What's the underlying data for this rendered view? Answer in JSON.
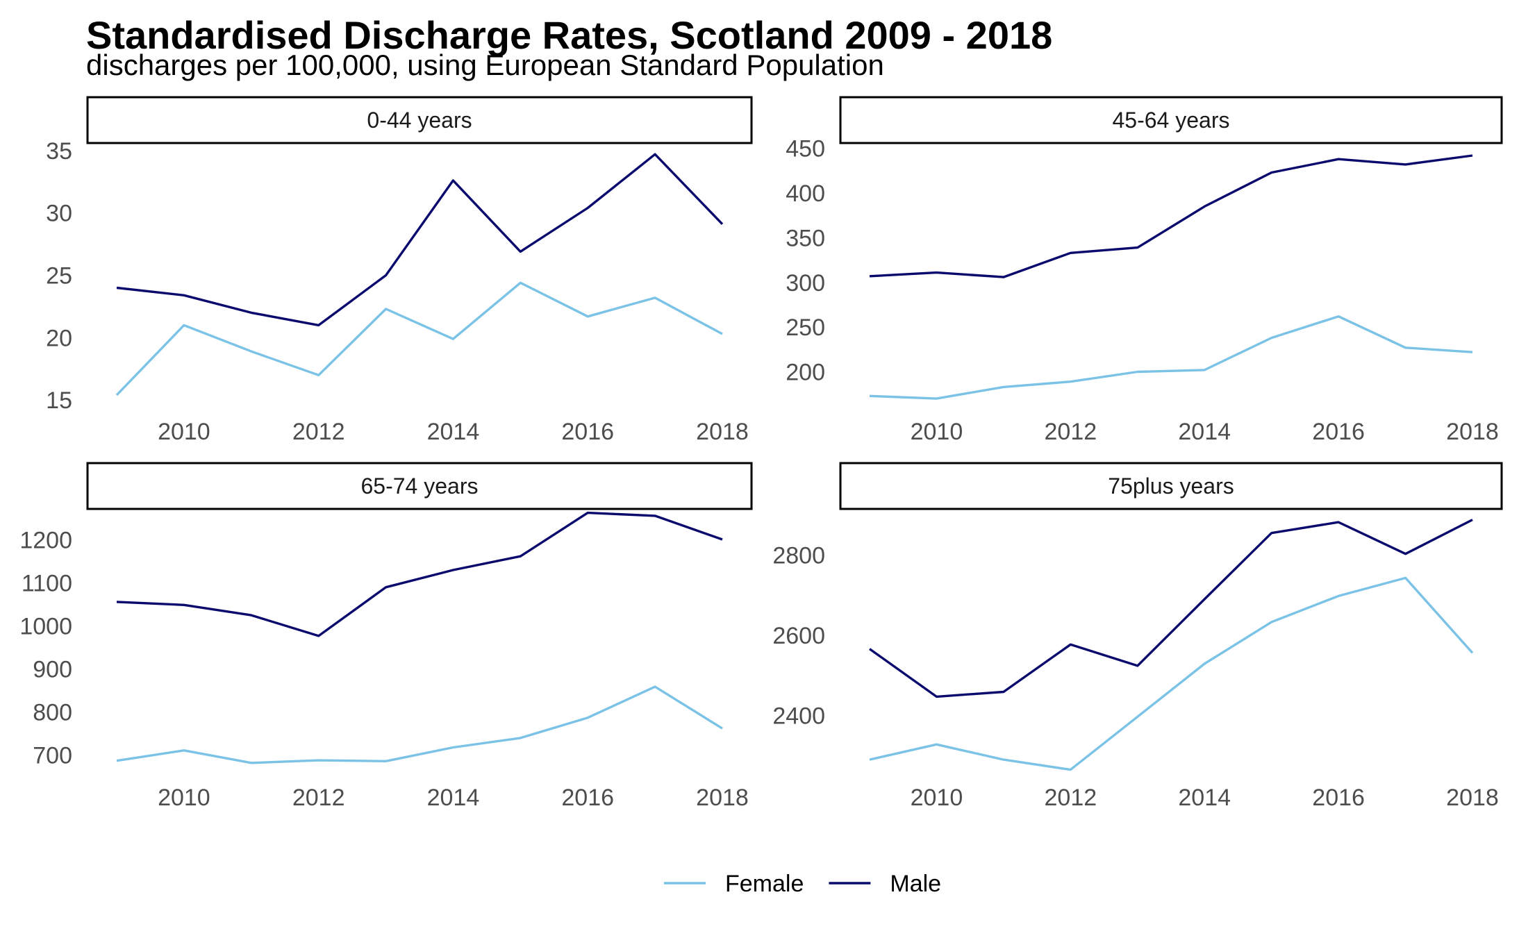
{
  "title": "Standardised Discharge Rates, Scotland 2009 - 2018",
  "subtitle": "discharges per 100,000, using European Standard Population",
  "legend": [
    "Female",
    "Male"
  ],
  "colors": {
    "Female": "#7bc3e6",
    "Male": "#0a0a6e"
  },
  "chart_data": {
    "type": "line",
    "layout": "facet 2x2",
    "legend_placement": "bottom",
    "grid": false,
    "x": [
      2009,
      2010,
      2011,
      2012,
      2013,
      2014,
      2015,
      2016,
      2017,
      2018
    ],
    "x_ticks": [
      2010,
      2012,
      2014,
      2016,
      2018
    ],
    "panels": [
      {
        "label": "0-44 years",
        "y_ticks": [
          15,
          20,
          25,
          30,
          35
        ],
        "ylim": [
          13.9,
          35.6
        ],
        "series": [
          {
            "name": "Female",
            "values": [
              15.4,
              21.0,
              18.9,
              17.0,
              22.3,
              19.9,
              24.4,
              21.7,
              23.2,
              20.3
            ]
          },
          {
            "name": "Male",
            "values": [
              24.0,
              23.4,
              22.0,
              21.0,
              25.0,
              32.6,
              26.9,
              30.4,
              34.7,
              29.1
            ]
          }
        ]
      },
      {
        "label": "45-64 years",
        "y_ticks": [
          200,
          250,
          300,
          350,
          400,
          450
        ],
        "ylim": [
          153,
          456
        ],
        "series": [
          {
            "name": "Female",
            "values": [
              173,
              170,
              183,
              189,
              200,
              202,
              238,
              262,
              227,
              222
            ]
          },
          {
            "name": "Male",
            "values": [
              307,
              311,
              306,
              333,
              339,
              385,
              423,
              438,
              432,
              442
            ]
          }
        ]
      },
      {
        "label": "65-74 years",
        "y_ticks": [
          700,
          800,
          900,
          1000,
          1100,
          1200
        ],
        "ylim": [
          643,
          1272
        ],
        "series": [
          {
            "name": "Female",
            "values": [
              687,
              711,
              682,
              688,
              686,
              718,
              740,
              787,
              859,
              762
            ]
          },
          {
            "name": "Male",
            "values": [
              1056,
              1049,
              1025,
              977,
              1090,
              1130,
              1162,
              1263,
              1256,
              1201
            ]
          }
        ]
      },
      {
        "label": "75plus years",
        "y_ticks": [
          2400,
          2600,
          2800
        ],
        "ylim": [
          2240,
          2915
        ],
        "series": [
          {
            "name": "Female",
            "values": [
              2290,
              2328,
              2290,
              2265,
              2397,
              2529,
              2633,
              2698,
              2743,
              2556
            ]
          },
          {
            "name": "Male",
            "values": [
              2566,
              2447,
              2459,
              2577,
              2524,
              2690,
              2855,
              2882,
              2803,
              2888
            ]
          }
        ]
      }
    ]
  }
}
